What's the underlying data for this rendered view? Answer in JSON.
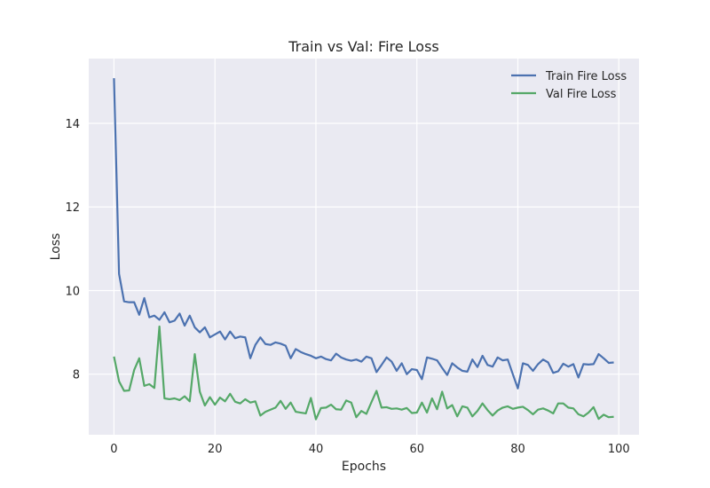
{
  "chart_data": {
    "type": "line",
    "title": "Train vs Val: Fire Loss",
    "xlabel": "Epochs",
    "ylabel": "Loss",
    "xlim": [
      -5,
      104
    ],
    "ylim": [
      6.55,
      15.55
    ],
    "xticks": [
      0,
      20,
      40,
      60,
      80,
      100
    ],
    "yticks": [
      8,
      10,
      12,
      14
    ],
    "grid": true,
    "legend_position": "top-right",
    "x": [
      0,
      1,
      2,
      3,
      4,
      5,
      6,
      7,
      8,
      9,
      10,
      11,
      12,
      13,
      14,
      15,
      16,
      17,
      18,
      19,
      20,
      21,
      22,
      23,
      24,
      25,
      26,
      27,
      28,
      29,
      30,
      31,
      32,
      33,
      34,
      35,
      36,
      37,
      38,
      39,
      40,
      41,
      42,
      43,
      44,
      45,
      46,
      47,
      48,
      49,
      50,
      51,
      52,
      53,
      54,
      55,
      56,
      57,
      58,
      59,
      60,
      61,
      62,
      63,
      64,
      65,
      66,
      67,
      68,
      69,
      70,
      71,
      72,
      73,
      74,
      75,
      76,
      77,
      78,
      79,
      80,
      81,
      82,
      83,
      84,
      85,
      86,
      87,
      88,
      89,
      90,
      91,
      92,
      93,
      94,
      95,
      96,
      97,
      98,
      99
    ],
    "series": [
      {
        "name": "Train Fire Loss",
        "color": "#4c72b0",
        "values": [
          15.08,
          10.4,
          9.74,
          9.72,
          9.72,
          9.42,
          9.82,
          9.36,
          9.4,
          9.3,
          9.48,
          9.24,
          9.28,
          9.45,
          9.16,
          9.4,
          9.12,
          9.0,
          9.12,
          8.88,
          8.95,
          9.02,
          8.83,
          9.02,
          8.86,
          8.9,
          8.88,
          8.38,
          8.7,
          8.88,
          8.72,
          8.7,
          8.76,
          8.73,
          8.68,
          8.38,
          8.6,
          8.53,
          8.48,
          8.44,
          8.38,
          8.42,
          8.36,
          8.33,
          8.49,
          8.4,
          8.35,
          8.32,
          8.35,
          8.3,
          8.42,
          8.38,
          8.05,
          8.22,
          8.4,
          8.3,
          8.08,
          8.26,
          8.0,
          8.12,
          8.1,
          7.88,
          8.4,
          8.37,
          8.33,
          8.15,
          7.98,
          8.26,
          8.16,
          8.08,
          8.06,
          8.35,
          8.17,
          8.44,
          8.22,
          8.18,
          8.4,
          8.33,
          8.35,
          8.0,
          7.66,
          8.26,
          8.22,
          8.08,
          8.24,
          8.35,
          8.28,
          8.03,
          8.07,
          8.25,
          8.18,
          8.24,
          7.92,
          8.24,
          8.23,
          8.24,
          8.48,
          8.38,
          8.27,
          8.28
        ]
      },
      {
        "name": "Val Fire Loss",
        "color": "#55a868",
        "values": [
          8.42,
          7.83,
          7.6,
          7.61,
          8.1,
          8.38,
          7.72,
          7.76,
          7.67,
          9.14,
          7.42,
          7.4,
          7.42,
          7.38,
          7.47,
          7.35,
          8.48,
          7.58,
          7.25,
          7.45,
          7.27,
          7.44,
          7.35,
          7.53,
          7.34,
          7.3,
          7.4,
          7.32,
          7.35,
          7.01,
          7.1,
          7.15,
          7.2,
          7.36,
          7.17,
          7.32,
          7.1,
          7.08,
          7.06,
          7.43,
          6.92,
          7.19,
          7.2,
          7.27,
          7.16,
          7.15,
          7.37,
          7.32,
          6.97,
          7.12,
          7.05,
          7.33,
          7.6,
          7.2,
          7.21,
          7.17,
          7.18,
          7.15,
          7.19,
          7.07,
          7.08,
          7.32,
          7.08,
          7.42,
          7.16,
          7.58,
          7.18,
          7.26,
          6.99,
          7.23,
          7.2,
          6.99,
          7.12,
          7.3,
          7.14,
          7.01,
          7.13,
          7.2,
          7.23,
          7.17,
          7.2,
          7.22,
          7.14,
          7.04,
          7.15,
          7.18,
          7.13,
          7.06,
          7.3,
          7.3,
          7.2,
          7.18,
          7.04,
          6.99,
          7.08,
          7.21,
          6.93,
          7.03,
          6.97,
          6.98
        ]
      }
    ]
  }
}
